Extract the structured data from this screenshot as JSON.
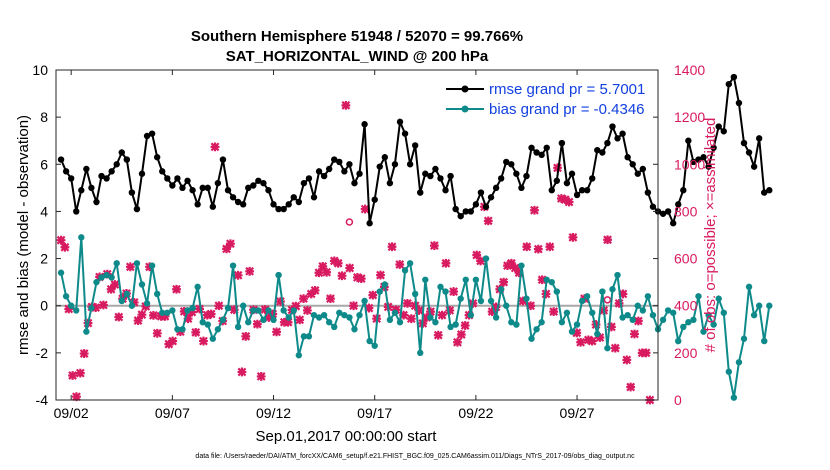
{
  "chart_data": {
    "type": "line",
    "title": "Southern Hemisphere 51948 / 52070 = 99.766%",
    "subtitle": "SAT_HORIZONTAL_WIND @ 200 hPa",
    "xlabel": "Sep.01,2017 00:00:00 start",
    "ylabel": "rmse and bias (model - observation)",
    "ylabel_right": "# of obs: o=possible; ×=assimilated",
    "footnote": "data file: /Users/raeder/DAI/ATM_forcXX/CAM6_setup/f.e21.FHIST_BGC.f09_025.CAM6assim.011/Diags_NTrS_2017-09/obs_diag_output.nc",
    "x_tick_labels": [
      "09/02",
      "09/07",
      "09/12",
      "09/17",
      "09/22",
      "09/27"
    ],
    "x_tick_days": [
      2,
      7,
      12,
      17,
      22,
      27
    ],
    "xlim": [
      1.25,
      31
    ],
    "ylim": [
      -4,
      10
    ],
    "y_ticks": [
      -4,
      -2,
      0,
      2,
      4,
      6,
      8,
      10
    ],
    "ylim_right": [
      0,
      1400
    ],
    "y_ticks_right": [
      0,
      200,
      400,
      600,
      800,
      1000,
      1200,
      1400
    ],
    "x_start_day": 1.5,
    "x_step_days": 0.25,
    "grid": false,
    "legend_position": "top-right",
    "series": [
      {
        "name": "rmse grand pr = 5.7001",
        "color": "#000000",
        "values": [
          6.2,
          5.7,
          5.4,
          4.0,
          4.9,
          5.8,
          5.0,
          4.4,
          5.5,
          5.4,
          5.7,
          6.0,
          6.5,
          6.2,
          4.8,
          4.1,
          5.6,
          7.2,
          7.3,
          6.3,
          5.7,
          5.4,
          5.1,
          5.4,
          5.0,
          5.3,
          4.9,
          4.3,
          5.0,
          5.0,
          4.2,
          5.2,
          6.2,
          4.9,
          4.6,
          4.4,
          4.3,
          5.0,
          5.1,
          5.3,
          5.2,
          4.9,
          4.3,
          4.1,
          4.1,
          4.3,
          4.6,
          4.4,
          5.2,
          5.4,
          4.6,
          5.7,
          5.5,
          5.8,
          6.2,
          6.1,
          5.7,
          6.0,
          5.2,
          5.6,
          7.7,
          3.5,
          4.5,
          5.9,
          6.3,
          5.2,
          6.0,
          7.8,
          7.3,
          6.0,
          6.8,
          4.8,
          5.6,
          5.5,
          5.8,
          5.4,
          4.9,
          5.5,
          4.1,
          3.8,
          4.0,
          4.0,
          4.3,
          4.8,
          4.2,
          4.6,
          5.0,
          5.4,
          6.1,
          6.0,
          5.6,
          5.0,
          5.5,
          6.7,
          6.5,
          6.4,
          6.7,
          4.9,
          5.3,
          6.9,
          5.2,
          5.6,
          4.7,
          4.9,
          4.9,
          5.4,
          6.6,
          6.5,
          6.9,
          7.6,
          7.1,
          7.3,
          6.3,
          6.0,
          5.6,
          5.8,
          4.8,
          4.2,
          4.0,
          3.9,
          4.0,
          3.5,
          4.3,
          4.9,
          7.0,
          6.1,
          6.2,
          6.3,
          5.9,
          6.7,
          7.6,
          7.4,
          9.4,
          9.7,
          8.6,
          6.9,
          6.5,
          5.9,
          7.1,
          4.8,
          4.9
        ]
      },
      {
        "name": "bias grand pr = -0.4346",
        "color": "#0f8a8a",
        "values": [
          1.4,
          0.4,
          0.0,
          -0.2,
          2.9,
          -1.1,
          -0.1,
          1.0,
          1.2,
          1.3,
          1.2,
          1.8,
          0.2,
          0.5,
          0.0,
          1.8,
          0.9,
          0.1,
          1.7,
          0.5,
          -0.3,
          -0.3,
          -0.2,
          -1.0,
          -1.0,
          -0.2,
          -0.1,
          0.8,
          -0.7,
          -0.8,
          -1.4,
          -1.0,
          -0.6,
          -0.1,
          1.7,
          -0.9,
          0.0,
          -0.7,
          -0.2,
          -0.2,
          -0.6,
          -0.2,
          -0.6,
          1.3,
          -0.2,
          -0.5,
          -0.2,
          -2.1,
          -1.3,
          -1.3,
          -0.4,
          -0.5,
          -0.4,
          -0.7,
          -0.9,
          -0.3,
          -0.4,
          -0.5,
          -1.0,
          -0.4,
          0.2,
          -1.5,
          -1.7,
          0.6,
          0.9,
          -0.6,
          -0.3,
          -0.7,
          1.5,
          1.8,
          0.5,
          -2.0,
          1.1,
          -0.5,
          -0.7,
          0.8,
          0.6,
          -0.9,
          -0.8,
          0.3,
          1.1,
          -0.4,
          1.1,
          0.2,
          2.0,
          0.2,
          -0.5,
          0.7,
          0.0,
          -0.7,
          -0.8,
          1.7,
          0.3,
          -1.4,
          -1.0,
          -0.7,
          1.1,
          1.0,
          0.6,
          -0.7,
          -0.3,
          -1.1,
          -0.8,
          0.2,
          0.4,
          -0.3,
          -1.2,
          0.6,
          -1.8,
          0.7,
          1.3,
          -0.5,
          -0.4,
          -0.6,
          0.0,
          -0.2,
          0.4,
          -0.4,
          -1.0,
          -0.6,
          -0.2,
          -0.3,
          -1.5,
          -0.9,
          -0.7,
          -0.6,
          0.4,
          -1.1,
          -0.4,
          -0.8,
          0.3,
          -0.3,
          -2.8,
          -3.9,
          -2.4,
          -1.4,
          0.8,
          -0.4,
          0.0,
          -1.5,
          0.0
        ]
      }
    ],
    "obs_assimilated_count": [
      678,
      648,
      386,
      104,
      14,
      114,
      197,
      326,
      395,
      392,
      522,
      403,
      534,
      470,
      490,
      352,
      430,
      452,
      565,
      414,
      337,
      362,
      397,
      565,
      359,
      283,
      355,
      355,
      237,
      250,
      470,
      290,
      376,
      345,
      373,
      287,
      386,
      250,
      360,
      365,
      1074,
      400,
      335,
      641,
      663,
      383,
      529,
      119,
      270,
      546,
      383,
      322,
      100,
      384,
      350,
      365,
      289,
      418,
      330,
      330,
      382,
      398,
      340,
      430,
      380,
      450,
      465,
      540,
      567,
      542,
      430,
      590,
      580,
      527,
      1250,
      560,
      400,
      520,
      515,
      810,
      390,
      445,
      345,
      530,
      480,
      395,
      650,
      383,
      575,
      360,
      410,
      345,
      400,
      380,
      325,
      350,
      375,
      655,
      275,
      360,
      580,
      380,
      460,
      245,
      278,
      316,
      360,
      410,
      615,
      590,
      820,
      760,
      375,
      395,
      470,
      500,
      570,
      580,
      560,
      540,
      420,
      650,
      400,
      805,
      640,
      510,
      450,
      650,
      375,
      985,
      855,
      850,
      840,
      690,
      285,
      245,
      430,
      255,
      250,
      320,
      265,
      380,
      680,
      310,
      220,
      410,
      450,
      170,
      55,
      280,
      335,
      200,
      200,
      0
    ],
    "obs_possible_markers": [
      {
        "x": 15.75,
        "count": 755
      },
      {
        "x": 28.5,
        "count": 425
      }
    ]
  }
}
